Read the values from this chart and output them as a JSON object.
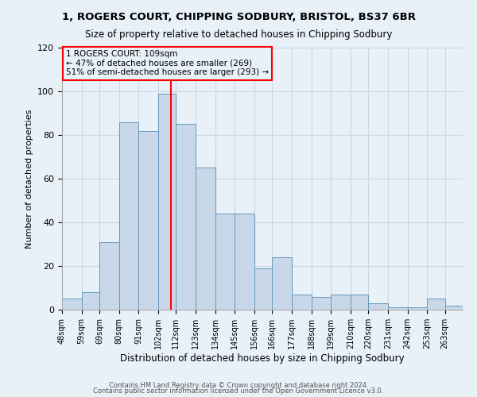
{
  "title": "1, ROGERS COURT, CHIPPING SODBURY, BRISTOL, BS37 6BR",
  "subtitle": "Size of property relative to detached houses in Chipping Sodbury",
  "xlabel": "Distribution of detached houses by size in Chipping Sodbury",
  "ylabel": "Number of detached properties",
  "bin_labels": [
    "48sqm",
    "59sqm",
    "69sqm",
    "80sqm",
    "91sqm",
    "102sqm",
    "112sqm",
    "123sqm",
    "134sqm",
    "145sqm",
    "156sqm",
    "166sqm",
    "177sqm",
    "188sqm",
    "199sqm",
    "210sqm",
    "220sqm",
    "231sqm",
    "242sqm",
    "253sqm",
    "263sqm"
  ],
  "bin_edges": [
    48,
    59,
    69,
    80,
    91,
    102,
    112,
    123,
    134,
    145,
    156,
    166,
    177,
    188,
    199,
    210,
    220,
    231,
    242,
    253,
    263
  ],
  "bar_heights": [
    5,
    8,
    31,
    86,
    82,
    99,
    85,
    65,
    44,
    44,
    19,
    24,
    7,
    6,
    7,
    7,
    3,
    1,
    1,
    5,
    2
  ],
  "bar_color": "#c8d8e8",
  "bar_edgecolor": "#6699bb",
  "vline_x": 109,
  "vline_color": "red",
  "annotation_text": "1 ROGERS COURT: 109sqm\n← 47% of detached houses are smaller (269)\n51% of semi-detached houses are larger (293) →",
  "annotation_box_edgecolor": "red",
  "ylim": [
    0,
    120
  ],
  "yticks": [
    0,
    20,
    40,
    60,
    80,
    100,
    120
  ],
  "grid_color": "#c8d8e8",
  "background_color": "#e8f0f8",
  "footer1": "Contains HM Land Registry data © Crown copyright and database right 2024.",
  "footer2": "Contains public sector information licensed under the Open Government Licence v3.0."
}
